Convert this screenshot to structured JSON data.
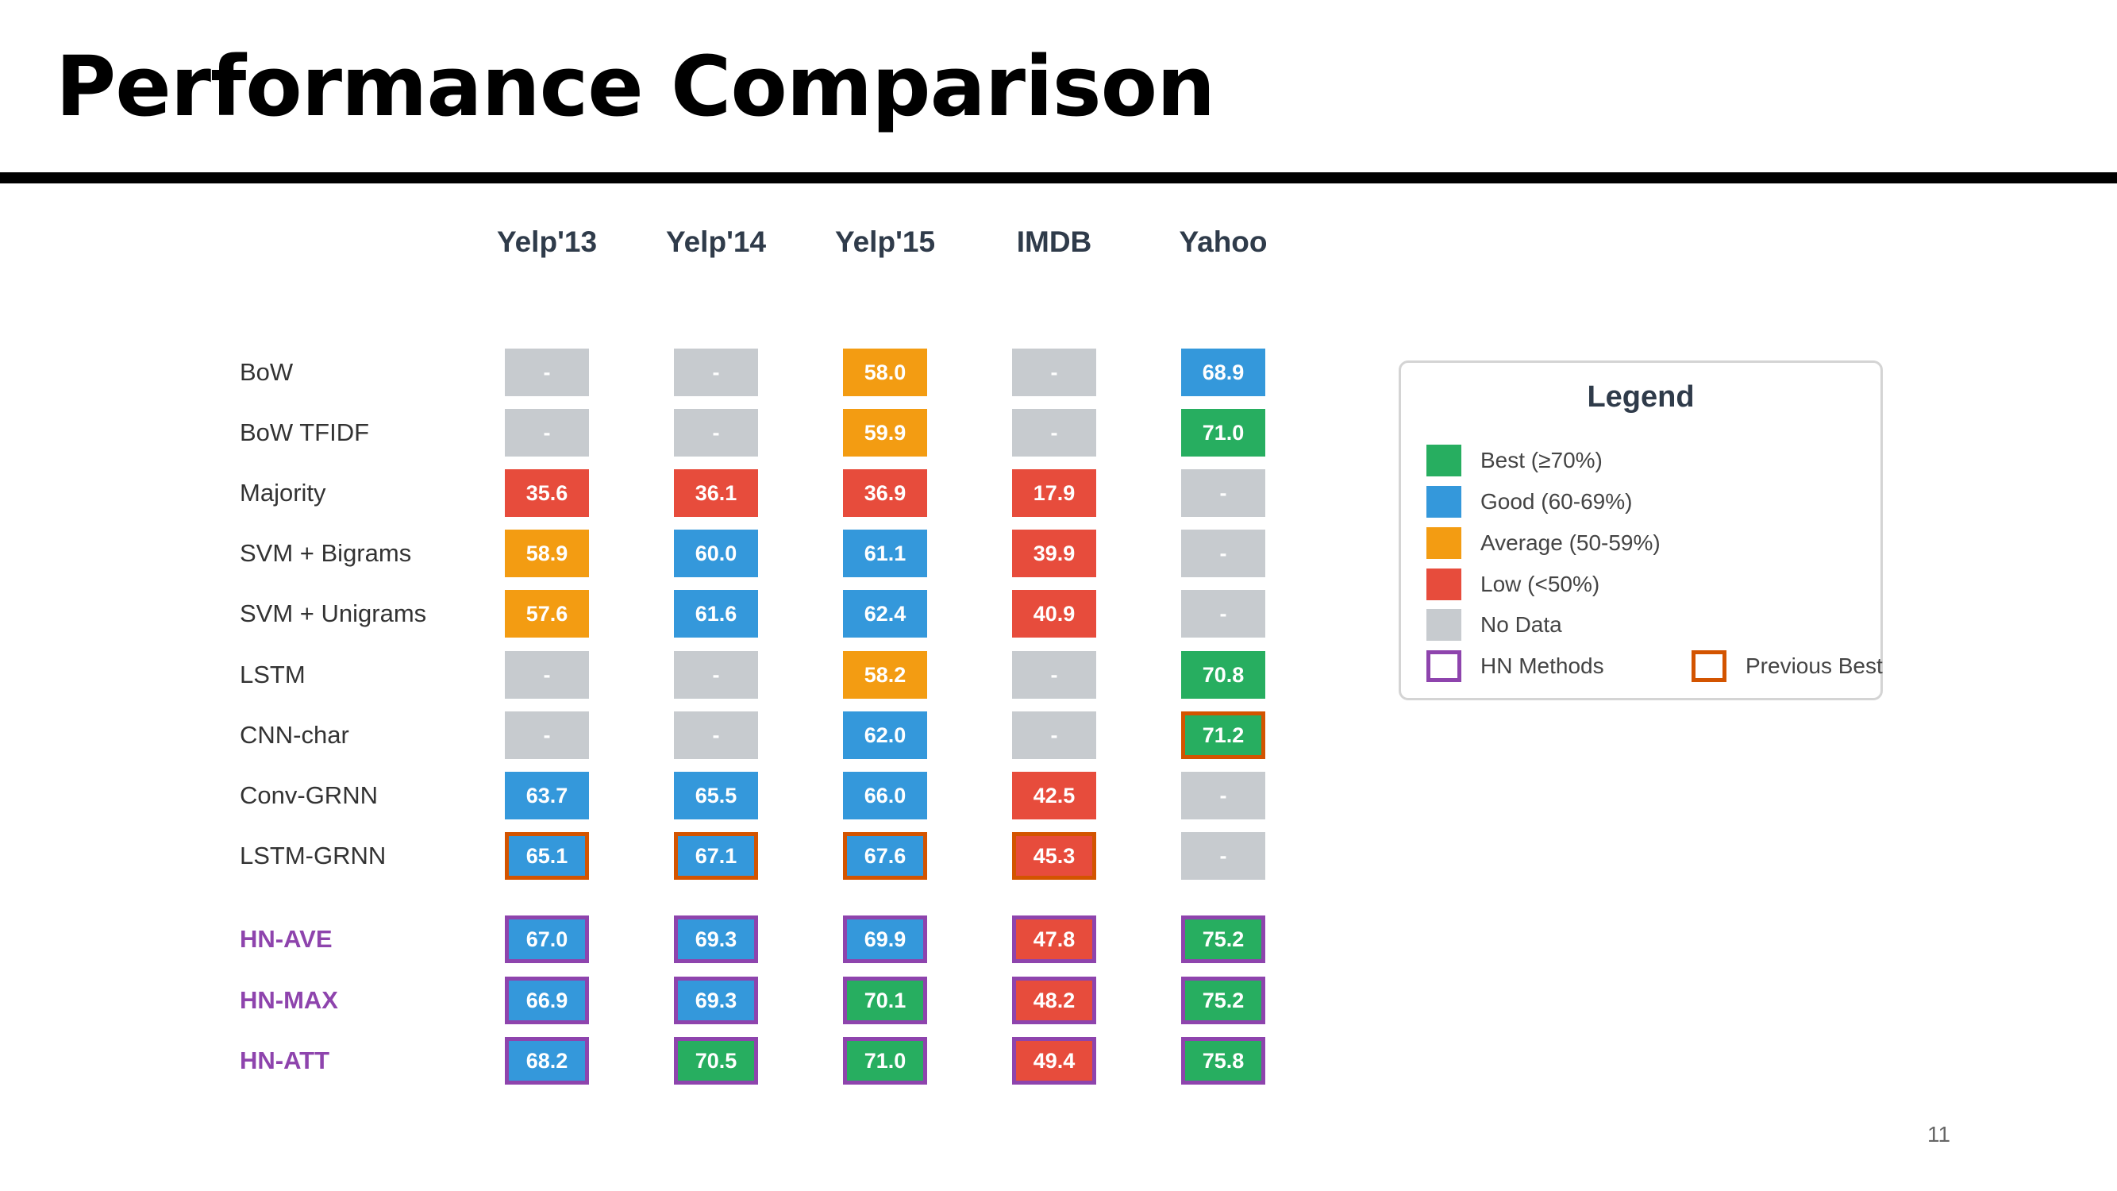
{
  "slide": {
    "title": "Performance Comparison",
    "page_number": "11"
  },
  "colors": {
    "best": "#27ae60",
    "good": "#3498db",
    "average": "#f39c12",
    "low": "#e74c3c",
    "no_data": "#c7cbcf",
    "hn_border": "#8e44ad",
    "previous_best_border": "#d35400"
  },
  "chart_data": {
    "type": "table",
    "columns": [
      "Yelp'13",
      "Yelp'14",
      "Yelp'15",
      "IMDB",
      "Yahoo"
    ],
    "rows": [
      {
        "method": "BoW",
        "group": "baseline",
        "values": [
          "-",
          "-",
          "58.0",
          "-",
          "68.9"
        ],
        "previous_best": []
      },
      {
        "method": "BoW TFIDF",
        "group": "baseline",
        "values": [
          "-",
          "-",
          "59.9",
          "-",
          "71.0"
        ],
        "previous_best": []
      },
      {
        "method": "Majority",
        "group": "baseline",
        "values": [
          "35.6",
          "36.1",
          "36.9",
          "17.9",
          "-"
        ],
        "previous_best": []
      },
      {
        "method": "SVM + Bigrams",
        "group": "baseline",
        "values": [
          "58.9",
          "60.0",
          "61.1",
          "39.9",
          "-"
        ],
        "previous_best": []
      },
      {
        "method": "SVM + Unigrams",
        "group": "baseline",
        "values": [
          "57.6",
          "61.6",
          "62.4",
          "40.9",
          "-"
        ],
        "previous_best": []
      },
      {
        "method": "LSTM",
        "group": "baseline",
        "values": [
          "-",
          "-",
          "58.2",
          "-",
          "70.8"
        ],
        "previous_best": []
      },
      {
        "method": "CNN-char",
        "group": "baseline",
        "values": [
          "-",
          "-",
          "62.0",
          "-",
          "71.2"
        ],
        "previous_best": [
          4
        ]
      },
      {
        "method": "Conv-GRNN",
        "group": "baseline",
        "values": [
          "63.7",
          "65.5",
          "66.0",
          "42.5",
          "-"
        ],
        "previous_best": []
      },
      {
        "method": "LSTM-GRNN",
        "group": "baseline",
        "values": [
          "65.1",
          "67.1",
          "67.6",
          "45.3",
          "-"
        ],
        "previous_best": [
          0,
          1,
          2,
          3
        ]
      },
      {
        "method": "HN-AVE",
        "group": "hn",
        "values": [
          "67.0",
          "69.3",
          "69.9",
          "47.8",
          "75.2"
        ],
        "previous_best": []
      },
      {
        "method": "HN-MAX",
        "group": "hn",
        "values": [
          "66.9",
          "69.3",
          "70.1",
          "48.2",
          "75.2"
        ],
        "previous_best": []
      },
      {
        "method": "HN-ATT",
        "group": "hn",
        "values": [
          "68.2",
          "70.5",
          "71.0",
          "49.4",
          "75.8"
        ],
        "previous_best": []
      }
    ],
    "legend": {
      "title": "Legend",
      "items": [
        {
          "label": "Best (≥70%)",
          "kind": "fill",
          "color_key": "best"
        },
        {
          "label": "Good (60-69%)",
          "kind": "fill",
          "color_key": "good"
        },
        {
          "label": "Average (50-59%)",
          "kind": "fill",
          "color_key": "average"
        },
        {
          "label": "Low (<50%)",
          "kind": "fill",
          "color_key": "low"
        },
        {
          "label": "No Data",
          "kind": "fill",
          "color_key": "no_data"
        },
        {
          "label": "HN Methods",
          "kind": "border",
          "color_key": "hn_border"
        },
        {
          "label": "Previous Best",
          "kind": "border",
          "color_key": "previous_best_border"
        }
      ]
    }
  }
}
